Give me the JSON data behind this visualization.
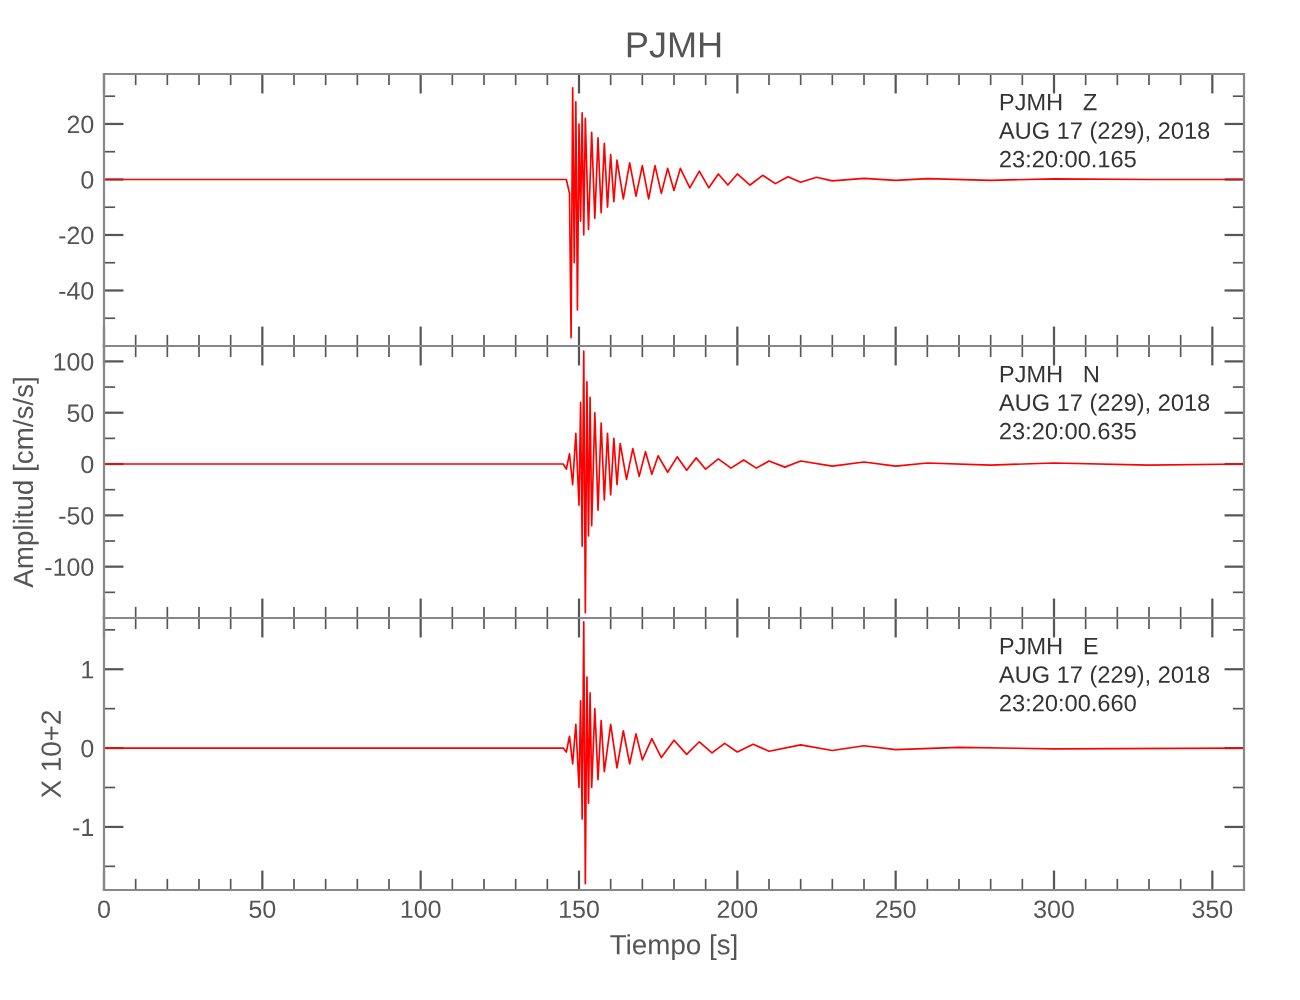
{
  "chart_data": [
    {
      "type": "line",
      "title": "PJMH",
      "xlim": [
        0,
        360
      ],
      "ylim": [
        -60,
        38
      ],
      "tick_labels": "y",
      "grid": false,
      "legend": false,
      "marker": "none",
      "line_style": "solid",
      "xticks": [
        0,
        {
          "value": 10,
          "label": null
        },
        {
          "value": 20,
          "label": null
        },
        {
          "value": 30,
          "label": null
        },
        {
          "value": 40,
          "label": null
        },
        50,
        {
          "value": 60,
          "label": null
        },
        {
          "value": 70,
          "label": null
        },
        {
          "value": 80,
          "label": null
        },
        {
          "value": 90,
          "label": null
        },
        100,
        {
          "value": 110,
          "label": null
        },
        {
          "value": 120,
          "label": null
        },
        {
          "value": 130,
          "label": null
        },
        {
          "value": 140,
          "label": null
        },
        150,
        {
          "value": 160,
          "label": null
        },
        {
          "value": 170,
          "label": null
        },
        {
          "value": 180,
          "label": null
        },
        {
          "value": 190,
          "label": null
        },
        200,
        {
          "value": 210,
          "label": null
        },
        {
          "value": 220,
          "label": null
        },
        {
          "value": 230,
          "label": null
        },
        {
          "value": 240,
          "label": null
        },
        250,
        {
          "value": 260,
          "label": null
        },
        {
          "value": 270,
          "label": null
        },
        {
          "value": 280,
          "label": null
        },
        {
          "value": 290,
          "label": null
        },
        300,
        {
          "value": 310,
          "label": null
        },
        {
          "value": 320,
          "label": null
        },
        {
          "value": 330,
          "label": null
        },
        {
          "value": 340,
          "label": null
        },
        350
      ],
      "yticks": [
        {
          "value": -50,
          "label": null
        },
        -40,
        {
          "value": -30,
          "label": null
        },
        -20,
        {
          "value": -10,
          "label": null
        },
        0,
        {
          "value": 10,
          "label": null
        },
        20,
        {
          "value": 30,
          "label": null
        }
      ],
      "annotations": [
        "PJMH   Z",
        "AUG 17 (229), 2018",
        "23:20:00.165"
      ],
      "series": [
        {
          "color": "#ff0000",
          "x": [
            0,
            50,
            100,
            146,
            147,
            147.5,
            148,
            148.5,
            149,
            149.5,
            150,
            150.5,
            151,
            151.5,
            152,
            153,
            154,
            155,
            156,
            157,
            158,
            159,
            160,
            161,
            162,
            164,
            166,
            168,
            170,
            172,
            174,
            176,
            178,
            180,
            182,
            185,
            188,
            191,
            194,
            197,
            200,
            204,
            208,
            212,
            216,
            220,
            225,
            230,
            240,
            250,
            260,
            280,
            300,
            330,
            360
          ],
          "values": [
            0,
            0,
            0,
            0,
            -5,
            -57,
            33,
            -30,
            28,
            -47,
            20,
            -15,
            24,
            -20,
            22,
            -18,
            17,
            -14,
            15,
            -12,
            13,
            -10,
            9,
            -8,
            7,
            -7,
            6,
            -6,
            5,
            -7,
            5,
            -5,
            4,
            -4,
            4,
            -3,
            3,
            -3,
            2,
            -2,
            2,
            -2,
            1.5,
            -1.5,
            1,
            -1,
            0.8,
            -0.5,
            0.4,
            -0.3,
            0.3,
            -0.3,
            0.2,
            0,
            0
          ]
        }
      ]
    },
    {
      "type": "line",
      "ylabel": "Amplitud [cm/s/s]",
      "xlim": [
        0,
        360
      ],
      "ylim": [
        -150,
        115
      ],
      "tick_labels": "y",
      "grid": false,
      "legend": false,
      "marker": "none",
      "line_style": "solid",
      "xticks": [
        0,
        {
          "value": 10,
          "label": null
        },
        {
          "value": 20,
          "label": null
        },
        {
          "value": 30,
          "label": null
        },
        {
          "value": 40,
          "label": null
        },
        50,
        {
          "value": 60,
          "label": null
        },
        {
          "value": 70,
          "label": null
        },
        {
          "value": 80,
          "label": null
        },
        {
          "value": 90,
          "label": null
        },
        100,
        {
          "value": 110,
          "label": null
        },
        {
          "value": 120,
          "label": null
        },
        {
          "value": 130,
          "label": null
        },
        {
          "value": 140,
          "label": null
        },
        150,
        {
          "value": 160,
          "label": null
        },
        {
          "value": 170,
          "label": null
        },
        {
          "value": 180,
          "label": null
        },
        {
          "value": 190,
          "label": null
        },
        200,
        {
          "value": 210,
          "label": null
        },
        {
          "value": 220,
          "label": null
        },
        {
          "value": 230,
          "label": null
        },
        {
          "value": 240,
          "label": null
        },
        250,
        {
          "value": 260,
          "label": null
        },
        {
          "value": 270,
          "label": null
        },
        {
          "value": 280,
          "label": null
        },
        {
          "value": 290,
          "label": null
        },
        300,
        {
          "value": 310,
          "label": null
        },
        {
          "value": 320,
          "label": null
        },
        {
          "value": 330,
          "label": null
        },
        {
          "value": 340,
          "label": null
        },
        350
      ],
      "yticks": [
        {
          "value": -125,
          "label": null
        },
        -100,
        {
          "value": -75,
          "label": null
        },
        -50,
        {
          "value": -25,
          "label": null
        },
        0,
        {
          "value": 25,
          "label": null
        },
        50,
        {
          "value": 75,
          "label": null
        },
        100
      ],
      "annotations": [
        "PJMH   N",
        "AUG 17 (229), 2018",
        "23:20:00.635"
      ],
      "series": [
        {
          "color": "#ff0000",
          "x": [
            0,
            50,
            100,
            145,
            146,
            147,
            148,
            149,
            150,
            150.5,
            151,
            151.5,
            152,
            152.5,
            153,
            153.5,
            154,
            155,
            156,
            157,
            158,
            159,
            160,
            161,
            162,
            163,
            165,
            167,
            169,
            171,
            173,
            175,
            178,
            181,
            184,
            187,
            190,
            194,
            198,
            202,
            206,
            210,
            215,
            220,
            230,
            240,
            250,
            260,
            280,
            300,
            330,
            360
          ],
          "values": [
            0,
            0,
            0,
            0,
            -5,
            10,
            -20,
            30,
            -40,
            60,
            -80,
            110,
            -145,
            80,
            -70,
            65,
            -60,
            50,
            -45,
            40,
            -35,
            30,
            -30,
            25,
            -20,
            20,
            -15,
            15,
            -12,
            12,
            -10,
            8,
            -8,
            7,
            -6,
            6,
            -5,
            5,
            -4,
            4,
            -4,
            3,
            -3,
            3,
            -2,
            2,
            -2,
            1,
            -1,
            1,
            -1,
            0
          ]
        }
      ]
    },
    {
      "type": "line",
      "xlabel": "Tiempo [s]",
      "ylabel": "X 10+2",
      "xlim": [
        0,
        360
      ],
      "ylim": [
        -1.8,
        1.65
      ],
      "grid": false,
      "legend": false,
      "marker": "none",
      "line_style": "solid",
      "xticks": [
        0,
        {
          "value": 10,
          "label": null
        },
        {
          "value": 20,
          "label": null
        },
        {
          "value": 30,
          "label": null
        },
        {
          "value": 40,
          "label": null
        },
        50,
        {
          "value": 60,
          "label": null
        },
        {
          "value": 70,
          "label": null
        },
        {
          "value": 80,
          "label": null
        },
        {
          "value": 90,
          "label": null
        },
        100,
        {
          "value": 110,
          "label": null
        },
        {
          "value": 120,
          "label": null
        },
        {
          "value": 130,
          "label": null
        },
        {
          "value": 140,
          "label": null
        },
        150,
        {
          "value": 160,
          "label": null
        },
        {
          "value": 170,
          "label": null
        },
        {
          "value": 180,
          "label": null
        },
        {
          "value": 190,
          "label": null
        },
        200,
        {
          "value": 210,
          "label": null
        },
        {
          "value": 220,
          "label": null
        },
        {
          "value": 230,
          "label": null
        },
        {
          "value": 240,
          "label": null
        },
        250,
        {
          "value": 260,
          "label": null
        },
        {
          "value": 270,
          "label": null
        },
        {
          "value": 280,
          "label": null
        },
        {
          "value": 290,
          "label": null
        },
        300,
        {
          "value": 310,
          "label": null
        },
        {
          "value": 320,
          "label": null
        },
        {
          "value": 330,
          "label": null
        },
        {
          "value": 340,
          "label": null
        },
        350
      ],
      "yticks": [
        {
          "value": -1.5,
          "label": null
        },
        -1,
        {
          "value": -0.5,
          "label": null
        },
        0,
        {
          "value": 0.5,
          "label": null
        },
        1,
        {
          "value": 1.5,
          "label": null
        }
      ],
      "annotations": [
        "PJMH   E",
        "AUG 17 (229), 2018",
        "23:20:00.660"
      ],
      "series": [
        {
          "color": "#ff0000",
          "x": [
            0,
            50,
            100,
            145,
            146,
            147,
            148,
            149,
            150,
            150.5,
            151,
            151.5,
            152,
            152.5,
            153,
            153.5,
            154,
            155,
            156,
            157,
            158,
            160,
            162,
            164,
            166,
            168,
            170,
            173,
            176,
            180,
            184,
            188,
            192,
            196,
            200,
            205,
            210,
            220,
            230,
            240,
            250,
            270,
            300,
            360
          ],
          "values": [
            0,
            0,
            0,
            0,
            -0.05,
            0.15,
            -0.2,
            0.3,
            -0.5,
            0.6,
            -0.9,
            1.6,
            -1.72,
            0.9,
            -0.7,
            0.7,
            -0.5,
            0.5,
            -0.4,
            0.35,
            -0.3,
            0.3,
            -0.25,
            0.22,
            -0.2,
            0.18,
            -0.15,
            0.12,
            -0.12,
            0.1,
            -0.08,
            0.08,
            -0.06,
            0.06,
            -0.05,
            0.05,
            -0.04,
            0.04,
            -0.03,
            0.03,
            -0.02,
            0.01,
            -0.01,
            0
          ]
        }
      ]
    }
  ]
}
